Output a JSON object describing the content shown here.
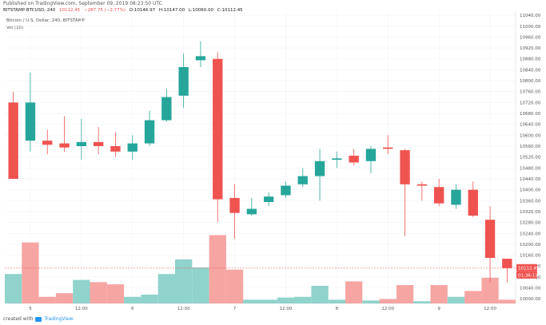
{
  "header": {
    "published": "Published on TradingView.com, September 09, 2019 08:23:50 UTC",
    "symbol": "BITSTAMP:BTCUSD, 240",
    "last": "10112.45",
    "change": "−287.75 (−2.77%)",
    "open": "O:10146.97",
    "high": "H:10147.00",
    "low": "L:10060.00",
    "close": "C:10112.45",
    "legend_series": "Bitcoin / U.S. Dollar, 240, BITSTAMP",
    "legend_volume": "Vol (20)"
  },
  "footer": {
    "prefix": "created with",
    "brand": "TradingView"
  },
  "price_label": {
    "value": "10112.45",
    "countdown": "01:36:11"
  },
  "colors": {
    "up": "#26a69a",
    "down": "#ef5350",
    "vol_up": "#8fd3cb",
    "vol_down": "#f6a5a3",
    "grid": "#f0f3fa",
    "price_line": "#ef5350"
  },
  "chart_data": {
    "type": "candlestick",
    "title": "",
    "y_ticks": [
      10000,
      10040,
      10080,
      10120,
      10160,
      10200,
      10240,
      10280,
      10320,
      10360,
      10400,
      10440,
      10480,
      10520,
      10560,
      10600,
      10640,
      10680,
      10720,
      10760,
      10800,
      10840,
      10880,
      10920,
      10960,
      11000,
      11040
    ],
    "y_tick_labels": [
      "10000.00",
      "10040.00",
      "10080.00",
      "10120.00",
      "10160.00",
      "10200.00",
      "10240.00",
      "10280.00",
      "10320.00",
      "10360.00",
      "10400.00",
      "10440.00",
      "10480.00",
      "10520.00",
      "10560.00",
      "10600.00",
      "10640.00",
      "10680.00",
      "10720.00",
      "10760.00",
      "10800.00",
      "10840.00",
      "10880.00",
      "10920.00",
      "10960.00",
      "11000.00",
      "11040.00"
    ],
    "ylim": [
      9983,
      11055
    ],
    "x_tick_labels": [
      {
        "label": "5",
        "index": 1.5
      },
      {
        "label": "12:00",
        "index": 4.5
      },
      {
        "label": "6",
        "index": 7.5
      },
      {
        "label": "12:00",
        "index": 10.5
      },
      {
        "label": "7",
        "index": 13.5
      },
      {
        "label": "12:00",
        "index": 16.5
      },
      {
        "label": "8",
        "index": 19.5
      },
      {
        "label": "12:00",
        "index": 22.5
      },
      {
        "label": "9",
        "index": 25.5
      },
      {
        "label": "12:00",
        "index": 28.5
      }
    ],
    "candles": [
      {
        "o": 10720,
        "h": 10760,
        "l": 10440,
        "c": 10440
      },
      {
        "o": 10580,
        "h": 10830,
        "l": 10540,
        "c": 10720
      },
      {
        "o": 10580,
        "h": 10620,
        "l": 10530,
        "c": 10565
      },
      {
        "o": 10570,
        "h": 10670,
        "l": 10540,
        "c": 10555
      },
      {
        "o": 10560,
        "h": 10660,
        "l": 10510,
        "c": 10575
      },
      {
        "o": 10575,
        "h": 10630,
        "l": 10530,
        "c": 10560
      },
      {
        "o": 10560,
        "h": 10610,
        "l": 10520,
        "c": 10540
      },
      {
        "o": 10540,
        "h": 10600,
        "l": 10510,
        "c": 10570
      },
      {
        "o": 10570,
        "h": 10690,
        "l": 10560,
        "c": 10655
      },
      {
        "o": 10655,
        "h": 10770,
        "l": 10650,
        "c": 10740
      },
      {
        "o": 10745,
        "h": 10900,
        "l": 10700,
        "c": 10850
      },
      {
        "o": 10875,
        "h": 10945,
        "l": 10850,
        "c": 10890
      },
      {
        "o": 10880,
        "h": 10905,
        "l": 10280,
        "c": 10365
      },
      {
        "o": 10370,
        "h": 10420,
        "l": 10220,
        "c": 10315
      },
      {
        "o": 10310,
        "h": 10370,
        "l": 10305,
        "c": 10330
      },
      {
        "o": 10355,
        "h": 10390,
        "l": 10340,
        "c": 10375
      },
      {
        "o": 10380,
        "h": 10430,
        "l": 10370,
        "c": 10415
      },
      {
        "o": 10420,
        "h": 10480,
        "l": 10410,
        "c": 10450
      },
      {
        "o": 10450,
        "h": 10550,
        "l": 10360,
        "c": 10505
      },
      {
        "o": 10510,
        "h": 10540,
        "l": 10480,
        "c": 10515
      },
      {
        "o": 10525,
        "h": 10550,
        "l": 10490,
        "c": 10500
      },
      {
        "o": 10505,
        "h": 10560,
        "l": 10460,
        "c": 10550
      },
      {
        "o": 10555,
        "h": 10600,
        "l": 10530,
        "c": 10550
      },
      {
        "o": 10545,
        "h": 10550,
        "l": 10230,
        "c": 10420
      },
      {
        "o": 10420,
        "h": 10430,
        "l": 10360,
        "c": 10415
      },
      {
        "o": 10410,
        "h": 10440,
        "l": 10340,
        "c": 10350
      },
      {
        "o": 10345,
        "h": 10420,
        "l": 10330,
        "c": 10400
      },
      {
        "o": 10400,
        "h": 10430,
        "l": 10300,
        "c": 10305
      },
      {
        "o": 10290,
        "h": 10340,
        "l": 10060,
        "c": 10150
      },
      {
        "o": 10146.97,
        "h": 10147,
        "l": 10060,
        "c": 10112.45
      }
    ],
    "volume": [
      {
        "v": 0.4,
        "up": true
      },
      {
        "v": 0.83,
        "up": false
      },
      {
        "v": 0.09,
        "up": false
      },
      {
        "v": 0.14,
        "up": false
      },
      {
        "v": 0.32,
        "up": true
      },
      {
        "v": 0.29,
        "up": false
      },
      {
        "v": 0.26,
        "up": false
      },
      {
        "v": 0.09,
        "up": true
      },
      {
        "v": 0.12,
        "up": true
      },
      {
        "v": 0.4,
        "up": true
      },
      {
        "v": 0.6,
        "up": true
      },
      {
        "v": 0.49,
        "up": true
      },
      {
        "v": 0.93,
        "up": false
      },
      {
        "v": 0.46,
        "up": false
      },
      {
        "v": 0.05,
        "up": true
      },
      {
        "v": 0.05,
        "up": true
      },
      {
        "v": 0.08,
        "up": true
      },
      {
        "v": 0.09,
        "up": true
      },
      {
        "v": 0.24,
        "up": true
      },
      {
        "v": 0.05,
        "up": true
      },
      {
        "v": 0.3,
        "up": false
      },
      {
        "v": 0.04,
        "up": true
      },
      {
        "v": 0.06,
        "up": false
      },
      {
        "v": 0.25,
        "up": false
      },
      {
        "v": 0.03,
        "up": true
      },
      {
        "v": 0.25,
        "up": false
      },
      {
        "v": 0.09,
        "up": true
      },
      {
        "v": 0.17,
        "up": false
      },
      {
        "v": 0.35,
        "up": false
      },
      {
        "v": 0.05,
        "up": false
      }
    ]
  }
}
